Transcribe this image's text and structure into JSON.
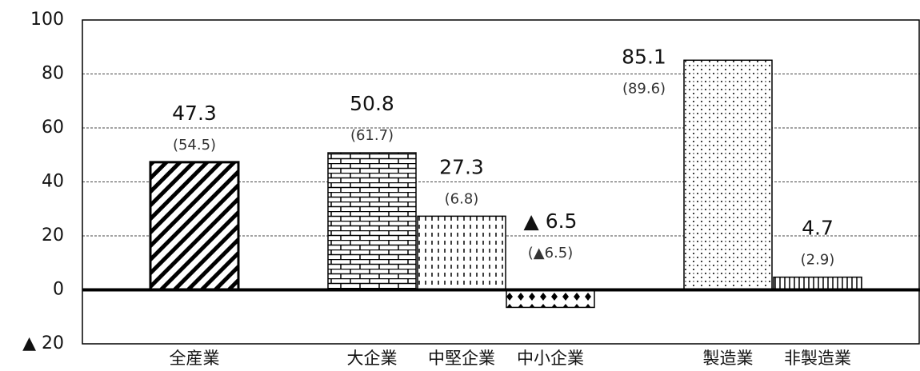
{
  "chart_data": {
    "type": "bar",
    "categories": [
      "全産業",
      "大企業",
      "中堅企業",
      "中小企業",
      "製造業",
      "非製造業"
    ],
    "values": [
      47.3,
      50.8,
      27.3,
      -6.5,
      85.1,
      4.7
    ],
    "value_labels": [
      "47.3",
      "50.8",
      "27.3",
      "▲ 6.5",
      "85.1",
      "4.7"
    ],
    "prior_labels": [
      "(54.5)",
      "(61.7)",
      "(6.8)",
      "(▲6.5)",
      "(89.6)",
      "(2.9)"
    ],
    "color": "#000000",
    "ylim": [
      -20,
      100
    ],
    "yticks": [
      {
        "value": -20,
        "label": "▲ 20"
      },
      0,
      20,
      40,
      60,
      80,
      100
    ],
    "grid": true
  }
}
